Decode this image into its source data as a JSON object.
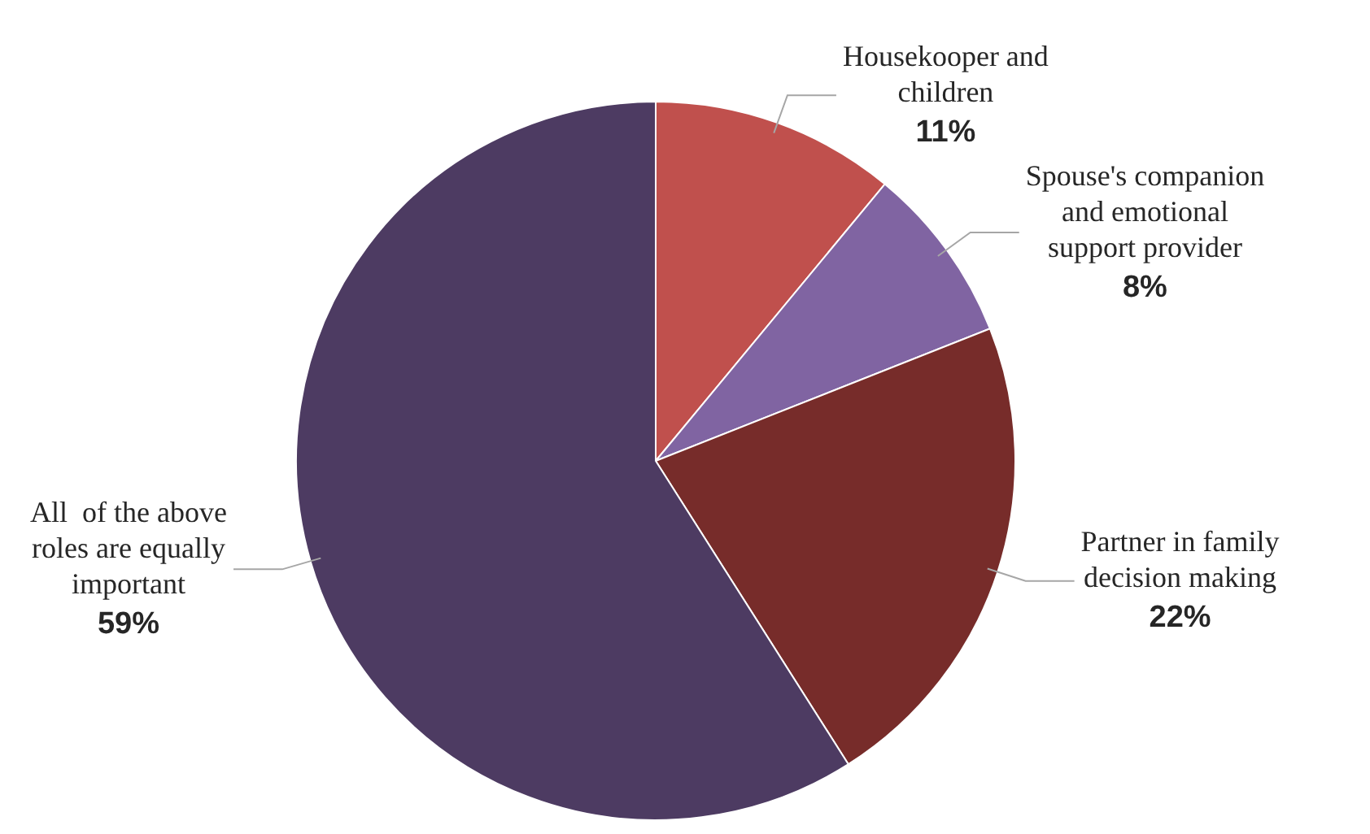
{
  "chart_data": {
    "type": "pie",
    "categories": [
      "Housekooper and children",
      "Spouse's companion and emotional support provider",
      "Partner in family decision making",
      "All  of the above roles are equally important"
    ],
    "values": [
      11,
      8,
      22,
      59
    ],
    "colors": [
      "#c0504d",
      "#8064a2",
      "#772c2a",
      "#4d3b62"
    ],
    "value_labels": [
      "11%",
      "8%",
      "22%",
      "59%"
    ],
    "legend": false
  }
}
